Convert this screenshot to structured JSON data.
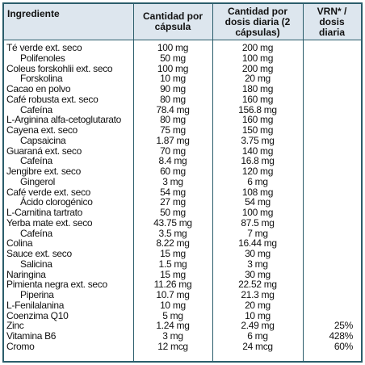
{
  "table": {
    "header": [
      "Ingrediente",
      "Cantidad por cápsula",
      "Cantidad por dosis diaria (2 cápsulas)",
      "VRN* / dosis diaria"
    ],
    "rows": [
      [
        "Té verde ext. seco",
        "100 mg",
        "200 mg"
      ],
      [
        "Polifenoles",
        "50 mg",
        "100 mg"
      ],
      [
        "Coleus forskohlii ext. seco",
        "100 mg",
        "200 mg"
      ],
      [
        "Forskolina",
        "10 mg",
        "20 mg"
      ],
      [
        "Cacao en polvo",
        "90 mg",
        "180 mg"
      ],
      [
        "Café robusta ext. seco",
        "80 mg",
        "160 mg"
      ],
      [
        "Cafeína",
        "78.4 mg",
        "156.8 mg"
      ],
      [
        "L-Arginina alfa-cetoglutarato",
        "80 mg",
        "160 mg"
      ],
      [
        "Cayena ext. seco",
        "75 mg",
        "150 mg"
      ],
      [
        "Capsaicina",
        "1.87 mg",
        "3.75 mg"
      ],
      [
        "Guaraná ext. seco",
        "70 mg",
        "140 mg"
      ],
      [
        "Cafeína",
        "8.4 mg",
        "16.8 mg"
      ],
      [
        "Jengibre ext. seco",
        "60 mg",
        "120 mg"
      ],
      [
        "Gingerol",
        "3 mg",
        "6 mg"
      ],
      [
        "Café verde ext. seco",
        "54 mg",
        "108 mg"
      ],
      [
        "Ácido clorogénico",
        "27 mg",
        "54 mg"
      ],
      [
        "L-Carnitina tartrato",
        "50 mg",
        "100 mg"
      ],
      [
        "Yerba mate ext. seco",
        "43.75 mg",
        "87.5 mg"
      ],
      [
        "Cafeína",
        "3.5 mg",
        "7 mg"
      ],
      [
        "Colina",
        "8.22 mg",
        "16.44 mg"
      ],
      [
        "Sauce ext. seco",
        "15 mg",
        "30 mg"
      ],
      [
        "Salicina",
        "1.5 mg",
        "3 mg"
      ],
      [
        "Naringina",
        "15 mg",
        "30 mg"
      ],
      [
        "Pimienta negra ext. seco",
        "11.26 mg",
        "22.52 mg"
      ],
      [
        "Piperina",
        "10.7 mg",
        "21.3 mg"
      ],
      [
        "L-Fenilalanina",
        "10 mg",
        "20 mg"
      ],
      [
        "Coenzima Q10",
        "5 mg",
        "10 mg"
      ],
      [
        "Zinc",
        "1.24 mg",
        "2.49 mg",
        "25%"
      ],
      [
        "Vitamina B6",
        "3 mg",
        "6 mg",
        "428%"
      ],
      [
        "Cromo",
        "12 mcg",
        "24 mcg",
        "60%"
      ]
    ]
  }
}
